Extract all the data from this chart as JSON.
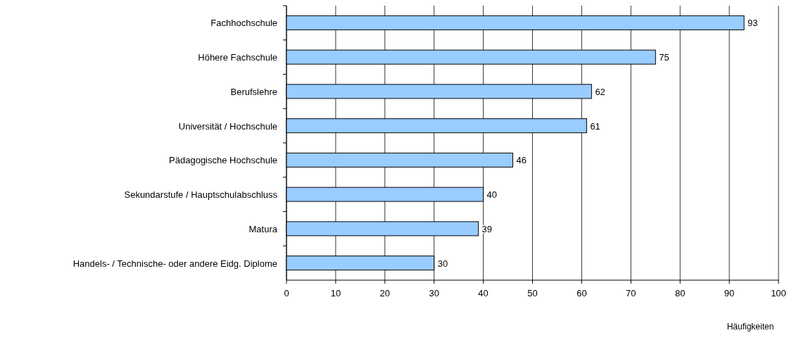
{
  "chart_data": {
    "type": "bar",
    "orientation": "horizontal",
    "xlabel": "Häufigkeiten",
    "categories": [
      "Fachhochschule",
      "Höhere Fachschule",
      "Berufslehre",
      "Universität / Hochschule",
      "Pädagogische Hochschule",
      "Sekundarstufe / Hauptschulabschluss",
      "Matura",
      "Handels- / Technische- oder andere Eidg. Diplome"
    ],
    "values": [
      93,
      75,
      62,
      61,
      46,
      40,
      39,
      30
    ],
    "color": "#99ccff",
    "data_labels": true,
    "grid": "x",
    "xlim": [
      0,
      100
    ],
    "xticks": [
      0,
      10,
      20,
      30,
      40,
      50,
      60,
      70,
      80,
      90,
      100
    ]
  }
}
